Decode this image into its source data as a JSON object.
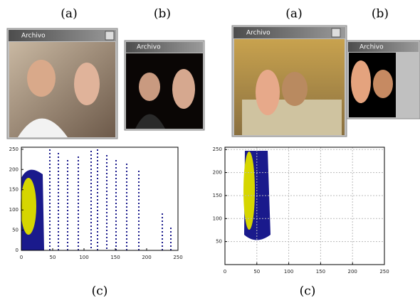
{
  "panels": [
    {
      "label_a": "(a)",
      "label_b": "(b)",
      "label_c": "(c)",
      "window_a_title": "Archivo",
      "window_b_title": "Archivo",
      "plot": {
        "xlim": [
          0,
          250
        ],
        "ylim": [
          0,
          255
        ],
        "xticks": [
          0,
          50,
          100,
          150,
          200,
          250
        ],
        "yticks": [
          0,
          50,
          100,
          150,
          200,
          250
        ],
        "grid": false
      }
    },
    {
      "label_a": "(a)",
      "label_b": "(b)",
      "label_c": "(c)",
      "window_a_title": "Archivo",
      "window_b_title": "Archivo",
      "plot": {
        "xlim": [
          0,
          250
        ],
        "ylim": [
          0,
          255
        ],
        "xticks": [
          0,
          50,
          100,
          150,
          200,
          250
        ],
        "yticks": [
          50,
          100,
          150,
          200,
          250
        ],
        "grid": true
      }
    }
  ]
}
